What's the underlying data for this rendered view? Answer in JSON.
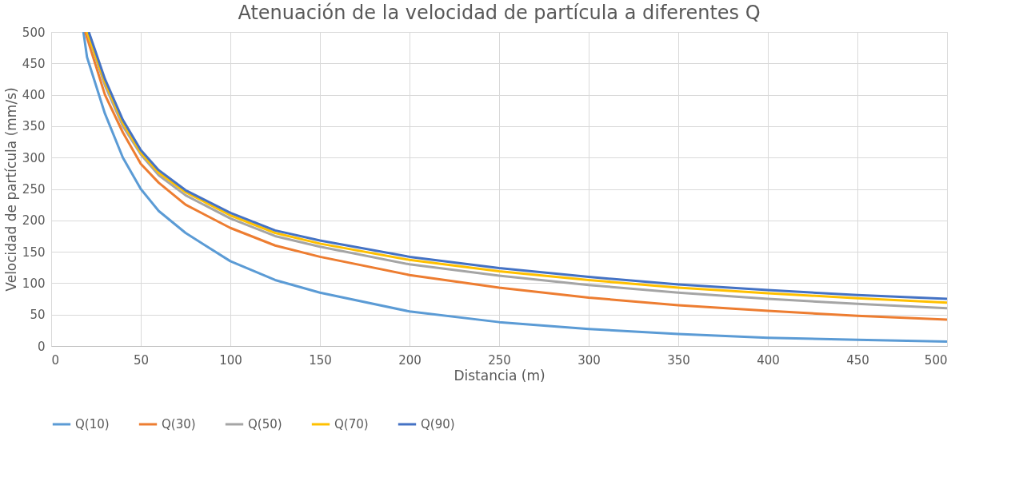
{
  "chart_data": {
    "type": "line",
    "title": "Atenuación de la velocidad de partícula a diferentes Q",
    "xlabel": "Distancia (m)",
    "ylabel": "Velocidad de partícula (mm/s)",
    "xlim": [
      0,
      500
    ],
    "xticks": [
      0,
      50,
      100,
      150,
      200,
      250,
      300,
      350,
      400,
      450,
      500
    ],
    "ylim": [
      0,
      500
    ],
    "yticks": [
      0,
      50,
      100,
      150,
      200,
      250,
      300,
      350,
      400,
      450,
      500
    ],
    "grid": true,
    "legend": "bottom",
    "marker": "none",
    "line_style": "solid",
    "series": [
      {
        "name": "Q(10)",
        "color": "#5b9bd5",
        "x": [
          18,
          20,
          30,
          40,
          50,
          60,
          75,
          100,
          125,
          150,
          200,
          250,
          300,
          350,
          400,
          450,
          500
        ],
        "values": [
          500,
          460,
          370,
          300,
          250,
          215,
          180,
          135,
          105,
          85,
          55,
          38,
          27,
          19,
          13,
          10,
          7
        ]
      },
      {
        "name": "Q(30)",
        "color": "#ed7d31",
        "x": [
          19,
          30,
          40,
          50,
          60,
          75,
          100,
          125,
          150,
          200,
          250,
          300,
          350,
          400,
          450,
          500
        ],
        "values": [
          500,
          400,
          340,
          290,
          260,
          225,
          188,
          160,
          142,
          113,
          93,
          77,
          65,
          56,
          48,
          42
        ]
      },
      {
        "name": "Q(50)",
        "color": "#a5a5a5",
        "x": [
          20,
          30,
          40,
          50,
          60,
          75,
          100,
          125,
          150,
          200,
          250,
          300,
          350,
          400,
          450,
          500
        ],
        "values": [
          500,
          415,
          350,
          305,
          272,
          240,
          203,
          175,
          158,
          130,
          112,
          97,
          85,
          75,
          67,
          60
        ]
      },
      {
        "name": "Q(70)",
        "color": "#ffc000",
        "x": [
          20,
          30,
          40,
          50,
          60,
          75,
          100,
          125,
          150,
          200,
          250,
          300,
          350,
          400,
          450,
          500
        ],
        "values": [
          500,
          420,
          355,
          308,
          276,
          245,
          208,
          180,
          163,
          137,
          119,
          105,
          93,
          84,
          76,
          69
        ]
      },
      {
        "name": "Q(90)",
        "color": "#4472c4",
        "x": [
          21,
          30,
          40,
          50,
          60,
          75,
          100,
          125,
          150,
          200,
          250,
          300,
          350,
          400,
          450,
          500
        ],
        "values": [
          500,
          425,
          360,
          312,
          280,
          248,
          212,
          184,
          168,
          142,
          124,
          110,
          98,
          89,
          81,
          75
        ]
      }
    ]
  }
}
